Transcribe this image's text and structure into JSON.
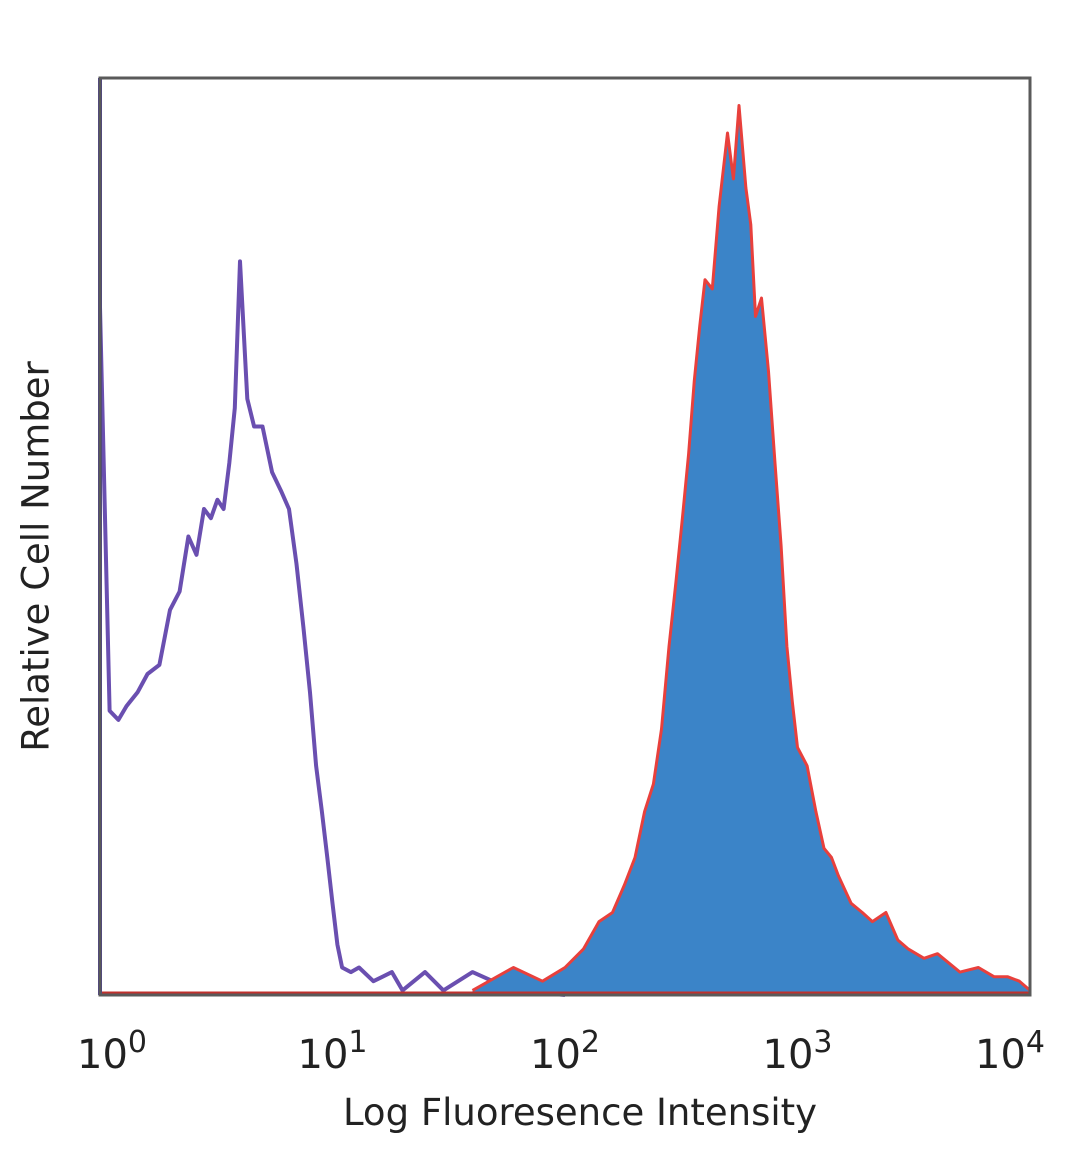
{
  "chart_data": {
    "type": "area",
    "title": "",
    "xlabel": "Log Fluoresence Intensity",
    "ylabel": "Relative Cell Number",
    "x_scale": "log",
    "xlim": [
      1,
      10000
    ],
    "ylim": [
      0,
      100
    ],
    "grid": false,
    "legend": "none",
    "x_ticks": [
      {
        "base": "10",
        "exp": "0"
      },
      {
        "base": "10",
        "exp": "1"
      },
      {
        "base": "10",
        "exp": "2"
      },
      {
        "base": "10",
        "exp": "3"
      },
      {
        "base": "10",
        "exp": "4"
      }
    ],
    "series": [
      {
        "style": "outline",
        "color": "#6a4fb0",
        "x": [
          1.0,
          1.1,
          1.2,
          1.3,
          1.45,
          1.6,
          1.8,
          2.0,
          2.2,
          2.4,
          2.6,
          2.8,
          3.0,
          3.2,
          3.4,
          3.6,
          3.8,
          4.0,
          4.3,
          4.6,
          5.0,
          5.5,
          6.0,
          6.5,
          7.0,
          7.5,
          8.0,
          8.5,
          9.0,
          9.5,
          10.0,
          10.5,
          11.0,
          12.0,
          13.0,
          15.0,
          18.0,
          20.0,
          25.0,
          30.0,
          40.0,
          60.0,
          100.0
        ],
        "y": [
          75.0,
          31.0,
          30.0,
          31.5,
          33.0,
          35.0,
          36.0,
          42.0,
          44.0,
          50.0,
          48.0,
          53.0,
          52.0,
          54.0,
          53.0,
          58.0,
          64.0,
          80.0,
          65.0,
          62.0,
          62.0,
          57.0,
          55.0,
          53.0,
          47.0,
          40.0,
          33.0,
          25.0,
          20.0,
          15.0,
          10.0,
          5.5,
          3.0,
          2.5,
          3.0,
          1.5,
          2.5,
          0.5,
          2.5,
          0.5,
          2.5,
          0.5,
          0.0
        ]
      },
      {
        "style": "filled",
        "color": "#3b84c8",
        "outline_color": "#e8403c",
        "x": [
          40,
          60,
          80,
          100,
          120,
          140,
          160,
          180,
          200,
          220,
          240,
          260,
          280,
          300,
          320,
          340,
          360,
          380,
          400,
          430,
          460,
          500,
          530,
          560,
          600,
          630,
          660,
          700,
          750,
          800,
          850,
          900,
          950,
          1000,
          1100,
          1200,
          1300,
          1400,
          1500,
          1700,
          1900,
          2100,
          2400,
          2700,
          3000,
          3500,
          4000,
          5000,
          6000,
          7000,
          8000,
          9000,
          10000
        ],
        "y": [
          0.5,
          3.0,
          1.5,
          3.0,
          5.0,
          8.0,
          9.0,
          12.0,
          15.0,
          20.0,
          23.0,
          29.0,
          38.0,
          45.0,
          52.0,
          59.0,
          67.0,
          73.0,
          78.0,
          77.0,
          86.0,
          94.0,
          89.0,
          97.0,
          88.0,
          84.0,
          74.0,
          76.0,
          68.0,
          58.0,
          49.0,
          38.0,
          32.0,
          27.0,
          25.0,
          20.0,
          16.0,
          15.0,
          13.0,
          10.0,
          9.0,
          8.0,
          9.0,
          6.0,
          5.0,
          4.0,
          4.5,
          2.5,
          3.0,
          2.0,
          2.0,
          1.5,
          0.5
        ]
      }
    ]
  }
}
